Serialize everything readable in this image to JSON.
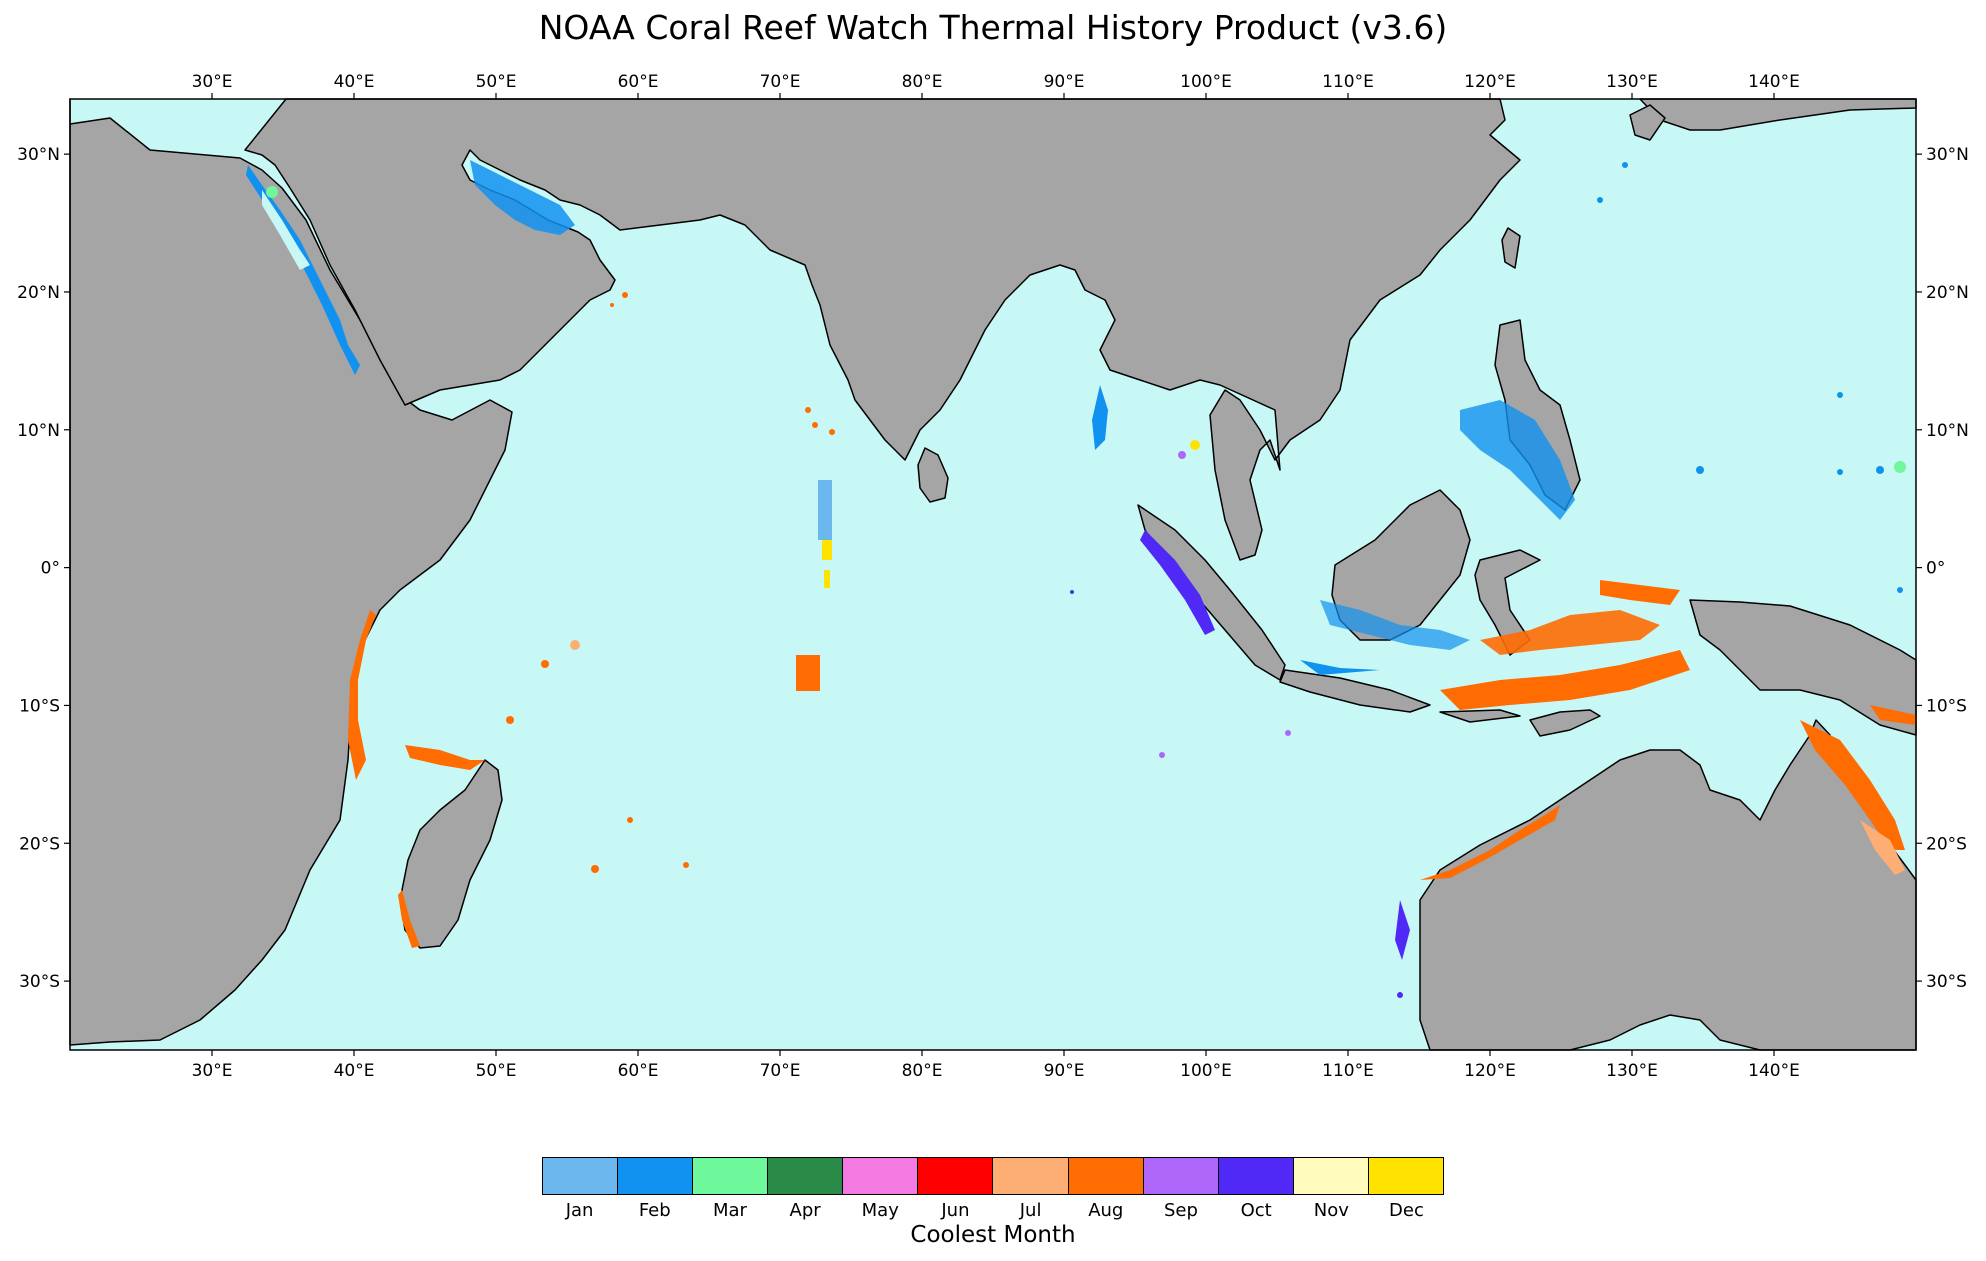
{
  "title": "NOAA Coral Reef Watch Thermal History Product (v3.6)",
  "map": {
    "lon_range": [
      20,
      150
    ],
    "lat_range": [
      -35,
      34
    ],
    "ocean_color": "#c8f8f6",
    "land_color": "#a5a5a5",
    "lon_ticks": [
      "30°E",
      "40°E",
      "50°E",
      "60°E",
      "70°E",
      "80°E",
      "90°E",
      "100°E",
      "110°E",
      "120°E",
      "130°E",
      "140°E"
    ],
    "lat_ticks": [
      "30°N",
      "20°N",
      "10°N",
      "0°",
      "10°S",
      "20°S",
      "30°S"
    ]
  },
  "legend": {
    "title": "Coolest Month",
    "months": [
      {
        "label": "Jan",
        "color": "#6cb8ee"
      },
      {
        "label": "Feb",
        "color": "#1191f0"
      },
      {
        "label": "Mar",
        "color": "#6ef79b"
      },
      {
        "label": "Apr",
        "color": "#2a8a48"
      },
      {
        "label": "May",
        "color": "#f27ae0"
      },
      {
        "label": "Jun",
        "color": "#fe0000"
      },
      {
        "label": "Jul",
        "color": "#fdae74"
      },
      {
        "label": "Aug",
        "color": "#fe6c02"
      },
      {
        "label": "Sep",
        "color": "#ae66f8"
      },
      {
        "label": "Oct",
        "color": "#5129f6"
      },
      {
        "label": "Nov",
        "color": "#fefbbd"
      },
      {
        "label": "Dec",
        "color": "#fee300"
      }
    ]
  }
}
